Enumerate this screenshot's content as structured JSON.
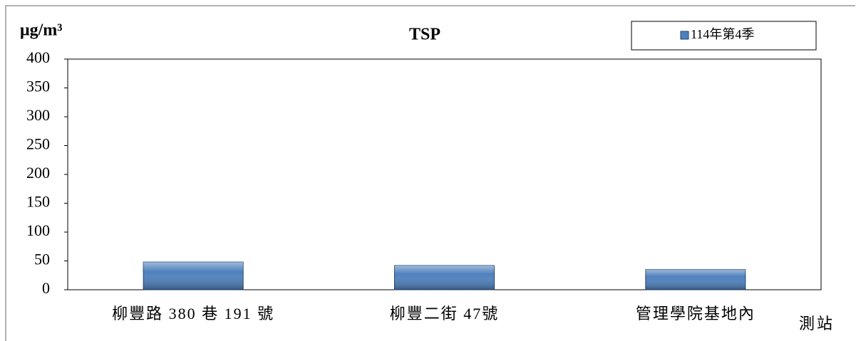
{
  "chart_data": {
    "type": "bar",
    "title": "TSP",
    "y_label": "μg/m³",
    "x_label": "測站",
    "categories": [
      "柳豐路 380 巷 191 號",
      "柳豐二街 47號",
      "管理學院基地內"
    ],
    "series": [
      {
        "name": "114年第4季",
        "color": "#4f81bd",
        "values": [
          48,
          42,
          35
        ]
      }
    ],
    "ylim": [
      0,
      400
    ],
    "yticks": [
      0,
      50,
      100,
      150,
      200,
      250,
      300,
      350,
      400
    ],
    "grid": false,
    "legend": "top-right"
  }
}
